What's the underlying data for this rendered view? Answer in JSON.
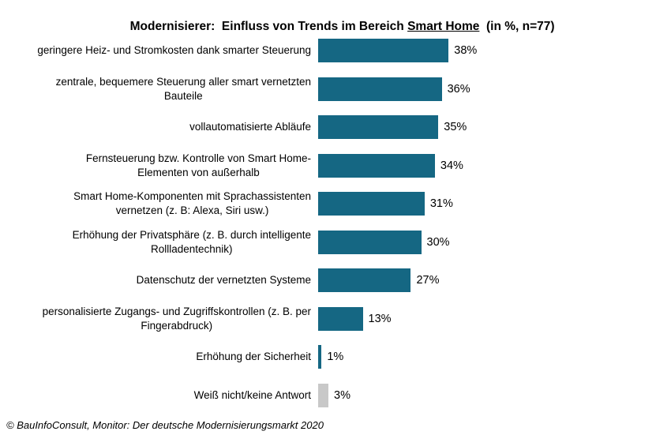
{
  "title": {
    "prefix": "Modernisierer:  Einfluss von Trends im Bereich ",
    "underlined": "Smart Home",
    "suffix": "  (in %, n=77)"
  },
  "footer": "© BauInfoConsult, Monitor: Der deutsche Modernisierungsmarkt 2020",
  "colors": {
    "bar_teal": "#15678346",
    "bar_gray": "#c8c8c8",
    "text": "#000000"
  },
  "chart_data": {
    "type": "bar",
    "orientation": "horizontal",
    "title": "Modernisierer: Einfluss von Trends im Bereich Smart Home (in %, n=77)",
    "n": 77,
    "unit": "%",
    "xlim": [
      0,
      40
    ],
    "grid": false,
    "legend": false,
    "categories": [
      "geringere Heiz- und Stromkosten dank smarter Steuerung",
      "zentrale, bequemere Steuerung aller smart vernetzten\nBauteile",
      "vollautomatisierte Abläufe",
      "Fernsteuerung bzw. Kontrolle von Smart Home-\nElementen von außerhalb",
      "Smart Home-Komponenten mit Sprachassistenten\nvernetzen (z. B: Alexa, Siri usw.)",
      "Erhöhung der Privatsphäre (z. B. durch intelligente\nRollladentechnik)",
      "Datenschutz der vernetzten Systeme",
      "personalisierte Zugangs- und Zugriffskontrollen (z. B. per\nFingerabdruck)",
      "Erhöhung der Sicherheit",
      "Weiß nicht/keine Antwort"
    ],
    "values": [
      38,
      36,
      35,
      34,
      31,
      30,
      27,
      13,
      1,
      3
    ],
    "value_labels": [
      "38%",
      "36%",
      "35%",
      "34%",
      "31%",
      "30%",
      "27%",
      "13%",
      "1%",
      "3%"
    ],
    "bar_colors": [
      "#156783",
      "#156783",
      "#156783",
      "#156783",
      "#156783",
      "#156783",
      "#156783",
      "#156783",
      "#156783",
      "#c8c8c8"
    ]
  }
}
